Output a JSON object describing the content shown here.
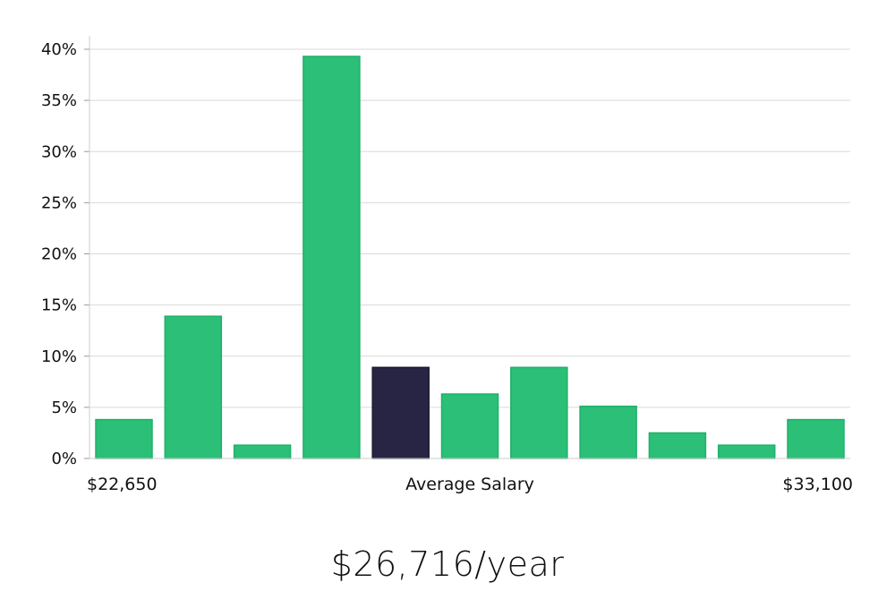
{
  "chart_data": {
    "type": "bar",
    "title": "",
    "ylabel": "",
    "xlabel": "Average Salary",
    "x_min_label": "$22,650",
    "x_max_label": "$33,100",
    "ylim": [
      0,
      40
    ],
    "y_ticks": [
      0,
      5,
      10,
      15,
      20,
      25,
      30,
      35,
      40
    ],
    "y_tick_suffix": "%",
    "grid": true,
    "bar_color": "#2bbf77",
    "bar_edge_color": "#1fb06a",
    "highlight_color": "#272444",
    "highlight_index": 4,
    "values": [
      3.8,
      13.9,
      1.3,
      39.3,
      8.9,
      6.3,
      8.9,
      5.1,
      2.5,
      1.3,
      3.8
    ]
  },
  "summary": {
    "salary": "$26,716/year"
  }
}
